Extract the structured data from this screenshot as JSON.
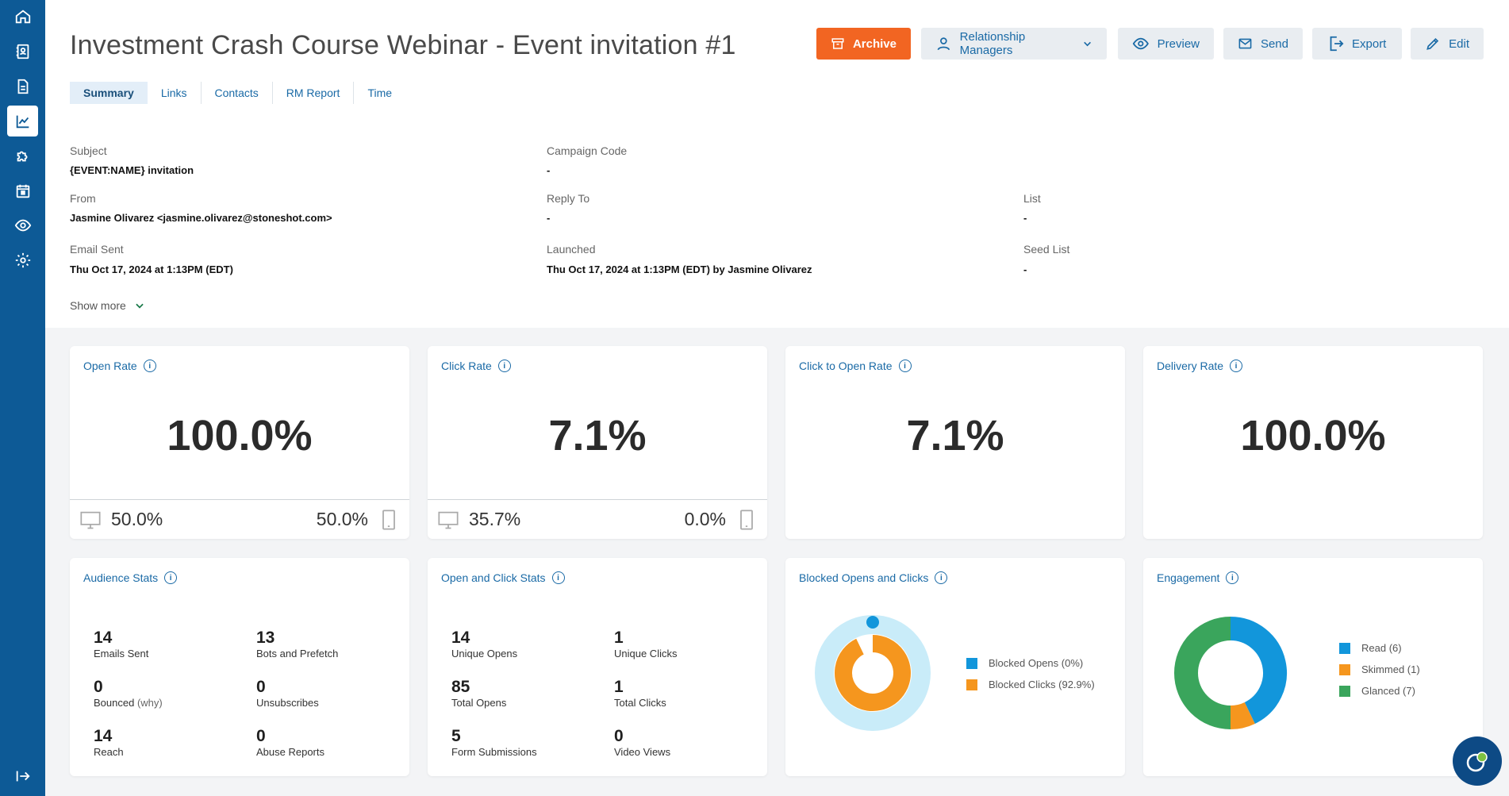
{
  "colors": {
    "brand": "#0d5a96",
    "accent": "#f26522",
    "link": "#1a6aa6",
    "read": "#1296db",
    "skimmed": "#f5961e",
    "glanced": "#3aa55c",
    "blocked_bg": "#c9ecf9"
  },
  "sidebar": {
    "items": [
      {
        "icon": "home-icon"
      },
      {
        "icon": "contacts-book-icon"
      },
      {
        "icon": "document-icon"
      },
      {
        "icon": "chart-icon"
      },
      {
        "icon": "puzzle-icon"
      },
      {
        "icon": "calendar-icon"
      },
      {
        "icon": "eye-icon"
      },
      {
        "icon": "gear-icon"
      }
    ],
    "collapse_icon": "collapse-arrow-icon"
  },
  "header": {
    "title": "Investment Crash Course Webinar - Event invitation #1",
    "toolbar": {
      "archive": "Archive",
      "relationship_managers": "Relationship Managers",
      "preview": "Preview",
      "send": "Send",
      "export": "Export",
      "edit": "Edit"
    },
    "tabs": [
      "Summary",
      "Links",
      "Contacts",
      "RM Report",
      "Time"
    ]
  },
  "meta": {
    "subject_label": "Subject",
    "subject": "{EVENT:NAME} invitation",
    "campaign_code_label": "Campaign Code",
    "campaign_code": "-",
    "from_label": "From",
    "from": "Jasmine Olivarez <jasmine.olivarez@stoneshot.com>",
    "reply_to_label": "Reply To",
    "reply_to": "-",
    "list_label": "List",
    "list": "-",
    "email_sent_label": "Email Sent",
    "email_sent": "Thu Oct 17, 2024 at 1:13PM (EDT)",
    "launched_label": "Launched",
    "launched": "Thu Oct 17, 2024 at 1:13PM (EDT) by Jasmine Olivarez",
    "seed_list_label": "Seed List",
    "seed_list": "-",
    "show_more": "Show more"
  },
  "rates": {
    "open": {
      "title": "Open Rate",
      "value": "100.0%",
      "desktop": "50.0%",
      "mobile": "50.0%"
    },
    "click": {
      "title": "Click Rate",
      "value": "7.1%",
      "desktop": "35.7%",
      "mobile": "0.0%"
    },
    "cto": {
      "title": "Click to Open Rate",
      "value": "7.1%"
    },
    "delivery": {
      "title": "Delivery Rate",
      "value": "100.0%"
    }
  },
  "audience": {
    "title": "Audience Stats",
    "emails_sent": "14",
    "emails_sent_label": "Emails Sent",
    "bots": "13",
    "bots_label": "Bots and Prefetch",
    "bounced": "0",
    "bounced_label": "Bounced",
    "why": "(why)",
    "unsubscribes": "0",
    "unsubscribes_label": "Unsubscribes",
    "reach": "14",
    "reach_label": "Reach",
    "abuse": "0",
    "abuse_label": "Abuse Reports"
  },
  "open_click": {
    "title": "Open and Click Stats",
    "unique_opens": "14",
    "unique_opens_label": "Unique Opens",
    "unique_clicks": "1",
    "unique_clicks_label": "Unique Clicks",
    "total_opens": "85",
    "total_opens_label": "Total Opens",
    "total_clicks": "1",
    "total_clicks_label": "Total Clicks",
    "form_submissions": "5",
    "form_submissions_label": "Form Submissions",
    "video_views": "0",
    "video_views_label": "Video Views"
  },
  "blocked": {
    "title": "Blocked Opens and Clicks",
    "legend": [
      "Blocked Opens (0%)",
      "Blocked Clicks (92.9%)"
    ]
  },
  "engagement": {
    "title": "Engagement",
    "legend": [
      "Read (6)",
      "Skimmed (1)",
      "Glanced (7)"
    ]
  },
  "chart_data": [
    {
      "type": "pie",
      "categories": [
        "Blocked Opens",
        "Blocked Clicks"
      ],
      "values": [
        0,
        92.9
      ]
    },
    {
      "type": "pie",
      "categories": [
        "Read",
        "Skimmed",
        "Glanced"
      ],
      "values": [
        6,
        1,
        7
      ]
    }
  ]
}
